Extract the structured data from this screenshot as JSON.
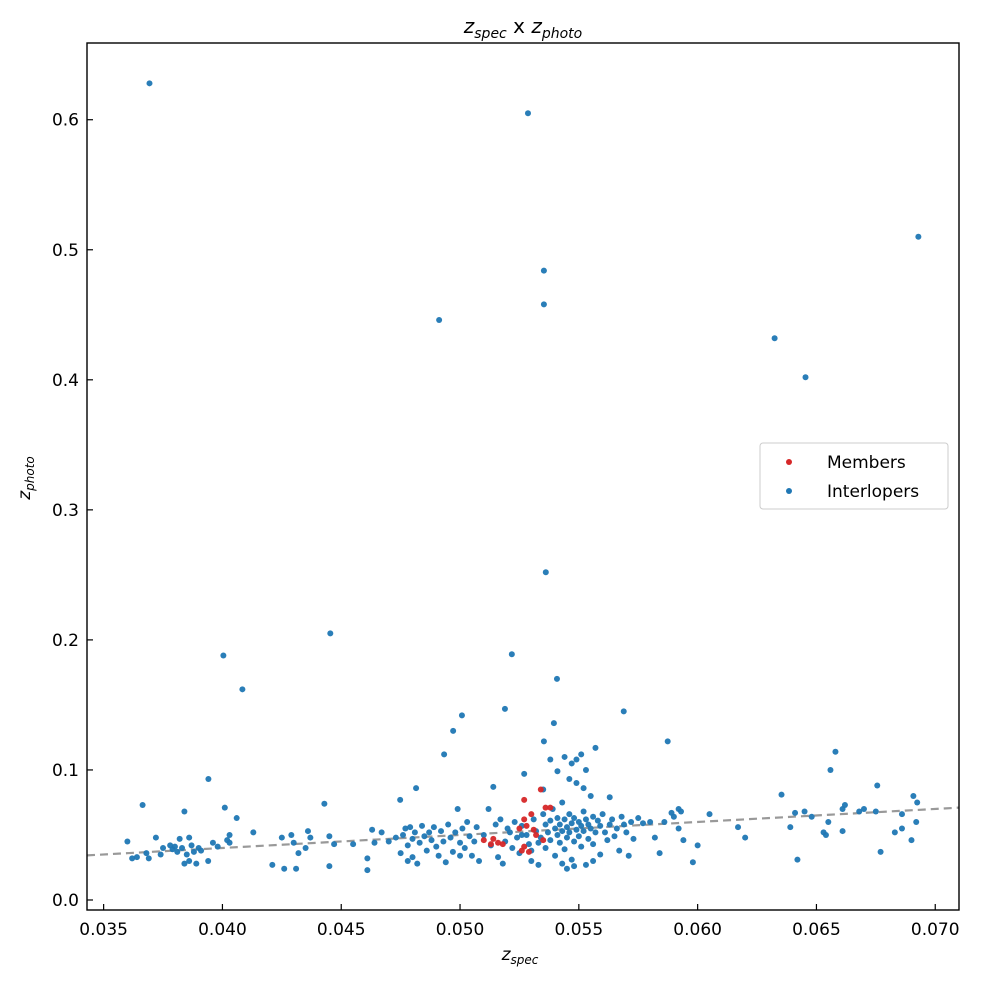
{
  "chart_data": {
    "type": "scatter",
    "title": {
      "main": "z",
      "sub1": "spec",
      "mid": " x ",
      "main2": "z",
      "sub2": "photo"
    },
    "xlabel": {
      "main": "z",
      "sub": "spec"
    },
    "ylabel": {
      "main": "z",
      "sub": "photo"
    },
    "xlim": [
      0.0343,
      0.071
    ],
    "ylim": [
      -0.0077,
      0.659
    ],
    "xticks": [
      0.035,
      0.04,
      0.045,
      0.05,
      0.055,
      0.06,
      0.065,
      0.07
    ],
    "xtick_labels": [
      "0.035",
      "0.040",
      "0.045",
      "0.050",
      "0.055",
      "0.060",
      "0.065",
      "0.070"
    ],
    "yticks": [
      0.0,
      0.1,
      0.2,
      0.3,
      0.4,
      0.5,
      0.6
    ],
    "ytick_labels": [
      "0.0",
      "0.1",
      "0.2",
      "0.3",
      "0.4",
      "0.5",
      "0.6"
    ],
    "grid": false,
    "reference_line": {
      "label": "y = x",
      "color": "#999999",
      "style": "dashed"
    },
    "legend": {
      "placement": "center-right",
      "entries": [
        "Members",
        "Interlopers"
      ]
    },
    "series": [
      {
        "name": "Interlopers",
        "color": "#1f77b4",
        "points": [
          [
            0.03693,
            0.628
          ],
          [
            0.05286,
            0.605
          ],
          [
            0.06929,
            0.51
          ],
          [
            0.05353,
            0.484
          ],
          [
            0.05353,
            0.458
          ],
          [
            0.04912,
            0.446
          ],
          [
            0.06324,
            0.432
          ],
          [
            0.06454,
            0.402
          ],
          [
            0.05361,
            0.252
          ],
          [
            0.04454,
            0.205
          ],
          [
            0.04004,
            0.188
          ],
          [
            0.05218,
            0.189
          ],
          [
            0.04084,
            0.162
          ],
          [
            0.05408,
            0.17
          ],
          [
            0.05189,
            0.147
          ],
          [
            0.05008,
            0.142
          ],
          [
            0.05689,
            0.145
          ],
          [
            0.05395,
            0.136
          ],
          [
            0.04971,
            0.13
          ],
          [
            0.05353,
            0.122
          ],
          [
            0.05874,
            0.122
          ],
          [
            0.04933,
            0.112
          ],
          [
            0.0658,
            0.114
          ],
          [
            0.03941,
            0.093
          ],
          [
            0.03664,
            0.073
          ],
          [
            0.04429,
            0.074
          ],
          [
            0.04748,
            0.077
          ],
          [
            0.04815,
            0.086
          ],
          [
            0.06353,
            0.081
          ],
          [
            0.06559,
            0.1
          ],
          [
            0.06756,
            0.088
          ],
          [
            0.06908,
            0.08
          ],
          [
            0.06924,
            0.075
          ],
          [
            0.0692,
            0.06
          ],
          [
            0.069,
            0.046
          ],
          [
            0.0677,
            0.037
          ],
          [
            0.0642,
            0.031
          ],
          [
            0.0598,
            0.029
          ],
          [
            0.0605,
            0.066
          ],
          [
            0.0617,
            0.056
          ],
          [
            0.062,
            0.048
          ],
          [
            0.0639,
            0.056
          ],
          [
            0.0641,
            0.067
          ],
          [
            0.0645,
            0.068
          ],
          [
            0.0648,
            0.064
          ],
          [
            0.0653,
            0.052
          ],
          [
            0.0655,
            0.06
          ],
          [
            0.0654,
            0.05
          ],
          [
            0.0661,
            0.07
          ],
          [
            0.0662,
            0.073
          ],
          [
            0.0661,
            0.053
          ],
          [
            0.0668,
            0.068
          ],
          [
            0.067,
            0.07
          ],
          [
            0.0675,
            0.068
          ],
          [
            0.0683,
            0.052
          ],
          [
            0.0686,
            0.055
          ],
          [
            0.0686,
            0.066
          ],
          [
            0.036,
            0.045
          ],
          [
            0.0362,
            0.032
          ],
          [
            0.0364,
            0.033
          ],
          [
            0.0368,
            0.036
          ],
          [
            0.0369,
            0.032
          ],
          [
            0.0372,
            0.048
          ],
          [
            0.0374,
            0.035
          ],
          [
            0.0375,
            0.04
          ],
          [
            0.0378,
            0.042
          ],
          [
            0.0379,
            0.039
          ],
          [
            0.038,
            0.041
          ],
          [
            0.0381,
            0.037
          ],
          [
            0.0382,
            0.047
          ],
          [
            0.0383,
            0.04
          ],
          [
            0.0384,
            0.068
          ],
          [
            0.0384,
            0.028
          ],
          [
            0.0385,
            0.035
          ],
          [
            0.0386,
            0.048
          ],
          [
            0.0386,
            0.03
          ],
          [
            0.0387,
            0.042
          ],
          [
            0.0388,
            0.037
          ],
          [
            0.0389,
            0.028
          ],
          [
            0.039,
            0.04
          ],
          [
            0.0391,
            0.038
          ],
          [
            0.0394,
            0.03
          ],
          [
            0.0396,
            0.044
          ],
          [
            0.0398,
            0.041
          ],
          [
            0.0401,
            0.071
          ],
          [
            0.0402,
            0.046
          ],
          [
            0.0403,
            0.044
          ],
          [
            0.0403,
            0.05
          ],
          [
            0.0406,
            0.063
          ],
          [
            0.0413,
            0.052
          ],
          [
            0.0421,
            0.027
          ],
          [
            0.0425,
            0.048
          ],
          [
            0.0426,
            0.024
          ],
          [
            0.0429,
            0.05
          ],
          [
            0.043,
            0.044
          ],
          [
            0.0431,
            0.024
          ],
          [
            0.0432,
            0.036
          ],
          [
            0.0435,
            0.04
          ],
          [
            0.0436,
            0.053
          ],
          [
            0.0437,
            0.048
          ],
          [
            0.0445,
            0.049
          ],
          [
            0.0445,
            0.026
          ],
          [
            0.0447,
            0.043
          ],
          [
            0.0455,
            0.043
          ],
          [
            0.0461,
            0.023
          ],
          [
            0.0461,
            0.032
          ],
          [
            0.0463,
            0.054
          ],
          [
            0.0464,
            0.044
          ],
          [
            0.0467,
            0.052
          ],
          [
            0.047,
            0.045
          ],
          [
            0.0473,
            0.048
          ],
          [
            0.0475,
            0.036
          ],
          [
            0.0476,
            0.05
          ],
          [
            0.0477,
            0.055
          ],
          [
            0.0478,
            0.03
          ],
          [
            0.0478,
            0.042
          ],
          [
            0.0479,
            0.056
          ],
          [
            0.048,
            0.047
          ],
          [
            0.048,
            0.033
          ],
          [
            0.0481,
            0.052
          ],
          [
            0.0482,
            0.028
          ],
          [
            0.0483,
            0.044
          ],
          [
            0.0484,
            0.057
          ],
          [
            0.0485,
            0.049
          ],
          [
            0.0486,
            0.038
          ],
          [
            0.0487,
            0.052
          ],
          [
            0.0488,
            0.046
          ],
          [
            0.0489,
            0.056
          ],
          [
            0.049,
            0.041
          ],
          [
            0.0491,
            0.034
          ],
          [
            0.0492,
            0.053
          ],
          [
            0.0493,
            0.045
          ],
          [
            0.0494,
            0.029
          ],
          [
            0.0495,
            0.058
          ],
          [
            0.0496,
            0.048
          ],
          [
            0.0497,
            0.037
          ],
          [
            0.0498,
            0.052
          ],
          [
            0.0499,
            0.07
          ],
          [
            0.05,
            0.044
          ],
          [
            0.05,
            0.034
          ],
          [
            0.0501,
            0.055
          ],
          [
            0.0502,
            0.04
          ],
          [
            0.0503,
            0.06
          ],
          [
            0.0504,
            0.049
          ],
          [
            0.0505,
            0.034
          ],
          [
            0.0506,
            0.045
          ],
          [
            0.0507,
            0.056
          ],
          [
            0.0508,
            0.03
          ],
          [
            0.051,
            0.05
          ],
          [
            0.0512,
            0.07
          ],
          [
            0.0513,
            0.042
          ],
          [
            0.0514,
            0.087
          ],
          [
            0.0515,
            0.058
          ],
          [
            0.0516,
            0.033
          ],
          [
            0.0517,
            0.062
          ],
          [
            0.0518,
            0.028
          ],
          [
            0.0519,
            0.045
          ],
          [
            0.052,
            0.055
          ],
          [
            0.0521,
            0.052
          ],
          [
            0.0522,
            0.04
          ],
          [
            0.0523,
            0.06
          ],
          [
            0.0524,
            0.048
          ],
          [
            0.0525,
            0.036
          ],
          [
            0.0526,
            0.057
          ],
          [
            0.0527,
            0.097
          ],
          [
            0.0528,
            0.05
          ],
          [
            0.0529,
            0.043
          ],
          [
            0.053,
            0.03
          ],
          [
            0.0531,
            0.062
          ],
          [
            0.0532,
            0.053
          ],
          [
            0.0533,
            0.027
          ],
          [
            0.0534,
            0.048
          ],
          [
            0.0535,
            0.066
          ],
          [
            0.0536,
            0.058
          ],
          [
            0.0536,
            0.04
          ],
          [
            0.0537,
            0.052
          ],
          [
            0.0538,
            0.061
          ],
          [
            0.0538,
            0.046
          ],
          [
            0.0539,
            0.07
          ],
          [
            0.054,
            0.055
          ],
          [
            0.054,
            0.034
          ],
          [
            0.0541,
            0.063
          ],
          [
            0.0541,
            0.05
          ],
          [
            0.0542,
            0.058
          ],
          [
            0.0542,
            0.044
          ],
          [
            0.0543,
            0.075
          ],
          [
            0.0543,
            0.053
          ],
          [
            0.0544,
            0.062
          ],
          [
            0.0544,
            0.039
          ],
          [
            0.0545,
            0.056
          ],
          [
            0.0545,
            0.048
          ],
          [
            0.0546,
            0.066
          ],
          [
            0.0546,
            0.052
          ],
          [
            0.0547,
            0.059
          ],
          [
            0.0547,
            0.031
          ],
          [
            0.0548,
            0.045
          ],
          [
            0.0548,
            0.063
          ],
          [
            0.0549,
            0.054
          ],
          [
            0.0549,
            0.09
          ],
          [
            0.055,
            0.06
          ],
          [
            0.055,
            0.049
          ],
          [
            0.0551,
            0.057
          ],
          [
            0.0551,
            0.041
          ],
          [
            0.0552,
            0.068
          ],
          [
            0.0552,
            0.053
          ],
          [
            0.0553,
            0.062
          ],
          [
            0.0553,
            0.027
          ],
          [
            0.0554,
            0.058
          ],
          [
            0.0554,
            0.047
          ],
          [
            0.0555,
            0.08
          ],
          [
            0.0555,
            0.055
          ],
          [
            0.0556,
            0.064
          ],
          [
            0.0556,
            0.043
          ],
          [
            0.0557,
            0.117
          ],
          [
            0.0557,
            0.052
          ],
          [
            0.0558,
            0.061
          ],
          [
            0.0559,
            0.057
          ],
          [
            0.0559,
            0.035
          ],
          [
            0.056,
            0.066
          ],
          [
            0.0561,
            0.052
          ],
          [
            0.0562,
            0.046
          ],
          [
            0.0563,
            0.079
          ],
          [
            0.0563,
            0.058
          ],
          [
            0.0564,
            0.062
          ],
          [
            0.0565,
            0.049
          ],
          [
            0.0566,
            0.055
          ],
          [
            0.0567,
            0.038
          ],
          [
            0.0568,
            0.064
          ],
          [
            0.0569,
            0.058
          ],
          [
            0.057,
            0.052
          ],
          [
            0.0571,
            0.034
          ],
          [
            0.0572,
            0.06
          ],
          [
            0.0573,
            0.047
          ],
          [
            0.0575,
            0.063
          ],
          [
            0.0577,
            0.059
          ],
          [
            0.058,
            0.06
          ],
          [
            0.0582,
            0.048
          ],
          [
            0.0584,
            0.036
          ],
          [
            0.0586,
            0.06
          ],
          [
            0.0589,
            0.067
          ],
          [
            0.059,
            0.064
          ],
          [
            0.0592,
            0.07
          ],
          [
            0.0593,
            0.068
          ],
          [
            0.0592,
            0.055
          ],
          [
            0.0594,
            0.046
          ],
          [
            0.06,
            0.042
          ],
          [
            0.0544,
            0.11
          ],
          [
            0.0547,
            0.105
          ],
          [
            0.0541,
            0.099
          ],
          [
            0.0553,
            0.1
          ],
          [
            0.0549,
            0.108
          ],
          [
            0.0538,
            0.108
          ],
          [
            0.0546,
            0.093
          ],
          [
            0.0552,
            0.086
          ],
          [
            0.0535,
            0.085
          ],
          [
            0.0551,
            0.112
          ],
          [
            0.0545,
            0.024
          ],
          [
            0.0548,
            0.026
          ],
          [
            0.0543,
            0.028
          ],
          [
            0.053,
            0.038
          ],
          [
            0.0533,
            0.044
          ],
          [
            0.0526,
            0.05
          ],
          [
            0.0556,
            0.03
          ]
        ]
      },
      {
        "name": "Members",
        "color": "#d62728",
        "points": [
          [
            0.0534,
            0.085
          ],
          [
            0.0527,
            0.077
          ],
          [
            0.0536,
            0.071
          ],
          [
            0.0538,
            0.071
          ],
          [
            0.053,
            0.066
          ],
          [
            0.0527,
            0.062
          ],
          [
            0.0528,
            0.057
          ],
          [
            0.0525,
            0.055
          ],
          [
            0.051,
            0.046
          ],
          [
            0.0514,
            0.047
          ],
          [
            0.0516,
            0.044
          ],
          [
            0.0518,
            0.043
          ],
          [
            0.0513,
            0.043
          ],
          [
            0.0527,
            0.041
          ],
          [
            0.0526,
            0.038
          ],
          [
            0.0529,
            0.037
          ],
          [
            0.0532,
            0.05
          ],
          [
            0.0535,
            0.046
          ],
          [
            0.0531,
            0.054
          ]
        ]
      }
    ]
  }
}
